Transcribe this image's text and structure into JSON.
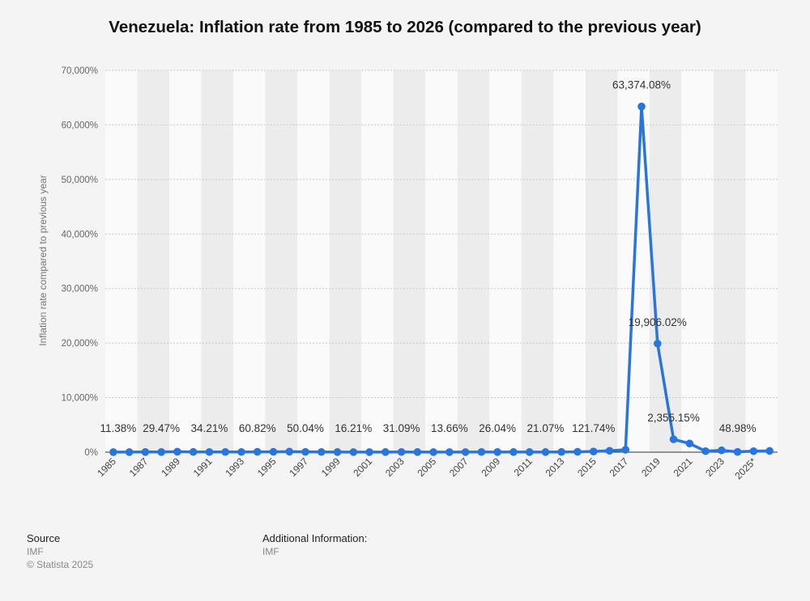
{
  "header": {
    "title": "Venezuela: Inflation rate from 1985 to 2026 (compared to the previous year)"
  },
  "footer": {
    "source_label": "Source",
    "source_value": "IMF",
    "copyright": "© Statista 2025",
    "additional_label": "Additional Information:",
    "additional_value": "IMF"
  },
  "colors": {
    "line": "#2876dd",
    "band": "#ececec",
    "background": "#f4f4f4"
  },
  "chart_data": {
    "type": "line",
    "title": "Venezuela: Inflation rate from 1985 to 2026 (compared to the previous year)",
    "xlabel": "",
    "ylabel": "Inflation rate compared to previous year",
    "ylim": [
      0,
      70000
    ],
    "yticks": [
      0,
      10000,
      20000,
      30000,
      40000,
      50000,
      60000,
      70000
    ],
    "ytick_labels": [
      "0%",
      "10,000%",
      "20,000%",
      "30,000%",
      "40,000%",
      "50,000%",
      "60,000%",
      "70,000%"
    ],
    "grid": true,
    "x": [
      "1985",
      "1986",
      "1987",
      "1988",
      "1989",
      "1990",
      "1991",
      "1992",
      "1993",
      "1994",
      "1995",
      "1996",
      "1997",
      "1998",
      "1999",
      "2000",
      "2001",
      "2002",
      "2003",
      "2004",
      "2005",
      "2006",
      "2007",
      "2008",
      "2009",
      "2010",
      "2011",
      "2012",
      "2013",
      "2014",
      "2015",
      "2016",
      "2017",
      "2018",
      "2019",
      "2020",
      "2021",
      "2022",
      "2023",
      "2024",
      "2025*",
      "2026*"
    ],
    "xtick_labels": [
      "1985",
      "1987",
      "1989",
      "1991",
      "1993",
      "1995",
      "1997",
      "1999",
      "2001",
      "2003",
      "2005",
      "2007",
      "2009",
      "2011",
      "2013",
      "2015",
      "2017",
      "2019",
      "2021",
      "2023",
      "2025*"
    ],
    "series": [
      {
        "values": [
          11.38,
          11.54,
          28.08,
          29.47,
          84.47,
          40.66,
          34.21,
          31.44,
          38.12,
          60.82,
          59.92,
          99.88,
          50.04,
          35.78,
          23.57,
          16.21,
          12.53,
          22.43,
          31.09,
          21.75,
          15.95,
          13.66,
          18.7,
          31.44,
          26.04,
          28.19,
          26.09,
          21.07,
          40.64,
          62.17,
          121.74,
          254.95,
          438.12,
          63374.08,
          19906.02,
          2355.15,
          1588.5,
          186.5,
          337.5,
          48.98,
          180,
          225
        ]
      }
    ],
    "data_labels": [
      {
        "x": "1985",
        "text": "11.38%"
      },
      {
        "x": "1988",
        "text": "29.47%"
      },
      {
        "x": "1991",
        "text": "34.21%"
      },
      {
        "x": "1994",
        "text": "60.82%"
      },
      {
        "x": "1997",
        "text": "50.04%"
      },
      {
        "x": "2000",
        "text": "16.21%"
      },
      {
        "x": "2003",
        "text": "31.09%"
      },
      {
        "x": "2006",
        "text": "13.66%"
      },
      {
        "x": "2009",
        "text": "26.04%"
      },
      {
        "x": "2012",
        "text": "21.07%"
      },
      {
        "x": "2015",
        "text": "121.74%"
      },
      {
        "x": "2018",
        "text": "63,374.08%"
      },
      {
        "x": "2019",
        "text": "19,906.02%"
      },
      {
        "x": "2020",
        "text": "2,355.15%"
      },
      {
        "x": "2024",
        "text": "48.98%"
      }
    ]
  }
}
